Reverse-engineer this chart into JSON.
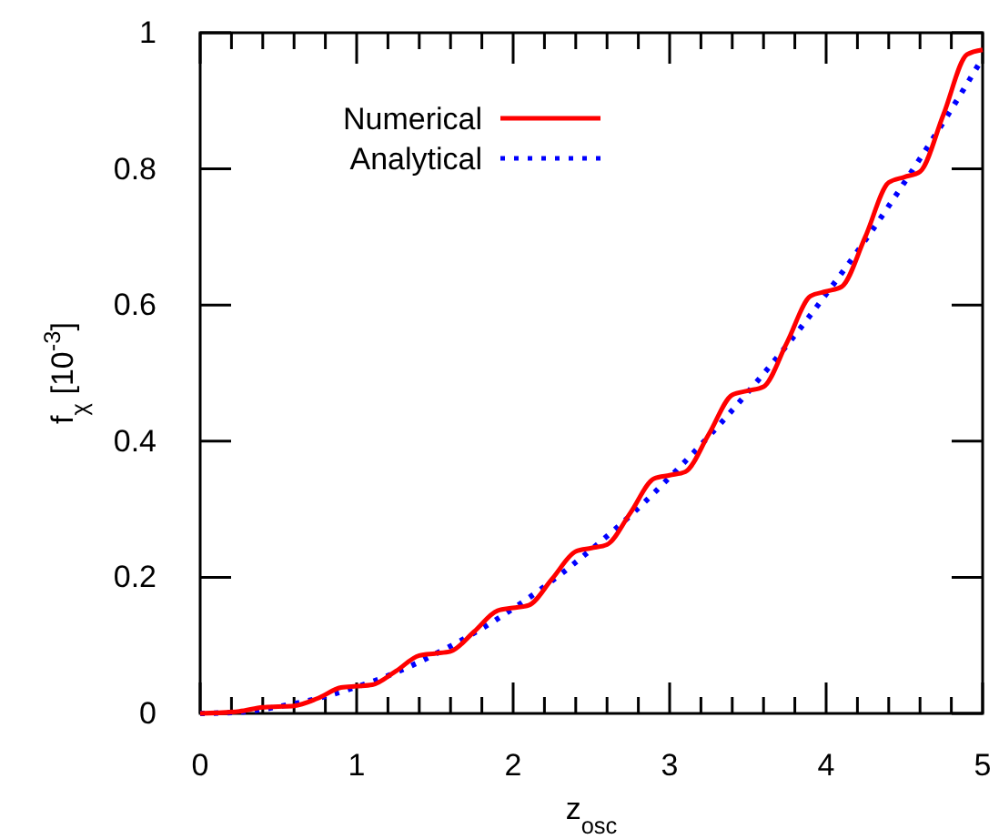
{
  "chart_data": {
    "type": "line",
    "xlabel": "z$_{osc}$",
    "ylabel": "f$_{χ}$ [10$^{-3}$]",
    "legend": "top left",
    "marker": "none",
    "grid": false,
    "xlim": [
      0,
      5
    ],
    "ylim": [
      0,
      1
    ],
    "xticks": [
      0,
      {
        "value": 0.2,
        "label": null
      },
      {
        "value": 0.4,
        "label": null
      },
      {
        "value": 0.6,
        "label": null
      },
      {
        "value": 0.8,
        "label": null
      },
      1,
      {
        "value": 1.2,
        "label": null
      },
      {
        "value": 1.4,
        "label": null
      },
      {
        "value": 1.6,
        "label": null
      },
      {
        "value": 1.8,
        "label": null
      },
      2,
      {
        "value": 2.2,
        "label": null
      },
      {
        "value": 2.4,
        "label": null
      },
      {
        "value": 2.6,
        "label": null
      },
      {
        "value": 2.8,
        "label": null
      },
      3,
      {
        "value": 3.2,
        "label": null
      },
      {
        "value": 3.4,
        "label": null
      },
      {
        "value": 3.6,
        "label": null
      },
      {
        "value": 3.8,
        "label": null
      },
      4,
      {
        "value": 4.2,
        "label": null
      },
      {
        "value": 4.4,
        "label": null
      },
      {
        "value": 4.6,
        "label": null
      },
      {
        "value": 4.8,
        "label": null
      },
      5
    ],
    "yticks": [
      0,
      0.2,
      0.4,
      0.6,
      0.8,
      1
    ],
    "series": [
      {
        "name": "Numerical",
        "color": "#ff0000",
        "line_style": "solid",
        "x": [
          0,
          0.25,
          0.4,
          0.5,
          0.6,
          0.75,
          0.9,
          1,
          1.1,
          1.25,
          1.4,
          1.5,
          1.6,
          1.75,
          1.9,
          2,
          2.1,
          2.25,
          2.4,
          2.5,
          2.6,
          2.75,
          2.9,
          3,
          3.1,
          3.25,
          3.4,
          3.5,
          3.6,
          3.75,
          3.9,
          4,
          4.1,
          4.25,
          4.4,
          4.5,
          4.6,
          4.75,
          4.9,
          5
        ],
        "values": [
          0,
          0.003,
          0.009,
          0.01,
          0.011,
          0.022,
          0.038,
          0.04,
          0.042,
          0.062,
          0.085,
          0.088,
          0.091,
          0.12,
          0.151,
          0.155,
          0.159,
          0.198,
          0.238,
          0.243,
          0.248,
          0.295,
          0.345,
          0.35,
          0.355,
          0.41,
          0.468,
          0.474,
          0.48,
          0.545,
          0.613,
          0.62,
          0.627,
          0.7,
          0.78,
          0.788,
          0.796,
          0.88,
          0.968,
          0.975
        ]
      },
      {
        "name": "Analytical",
        "color": "#0000ff",
        "line_style": "dotted",
        "x": [
          0,
          0.25,
          0.5,
          0.75,
          1,
          1.25,
          1.5,
          1.75,
          2,
          2.25,
          2.5,
          2.75,
          3,
          3.25,
          3.5,
          3.75,
          4,
          4.25,
          4.5,
          4.75,
          5
        ],
        "values": [
          0,
          0.002,
          0.01,
          0.022,
          0.039,
          0.06,
          0.087,
          0.118,
          0.154,
          0.195,
          0.241,
          0.291,
          0.347,
          0.407,
          0.472,
          0.541,
          0.616,
          0.695,
          0.78,
          0.869,
          0.963
        ]
      }
    ]
  }
}
